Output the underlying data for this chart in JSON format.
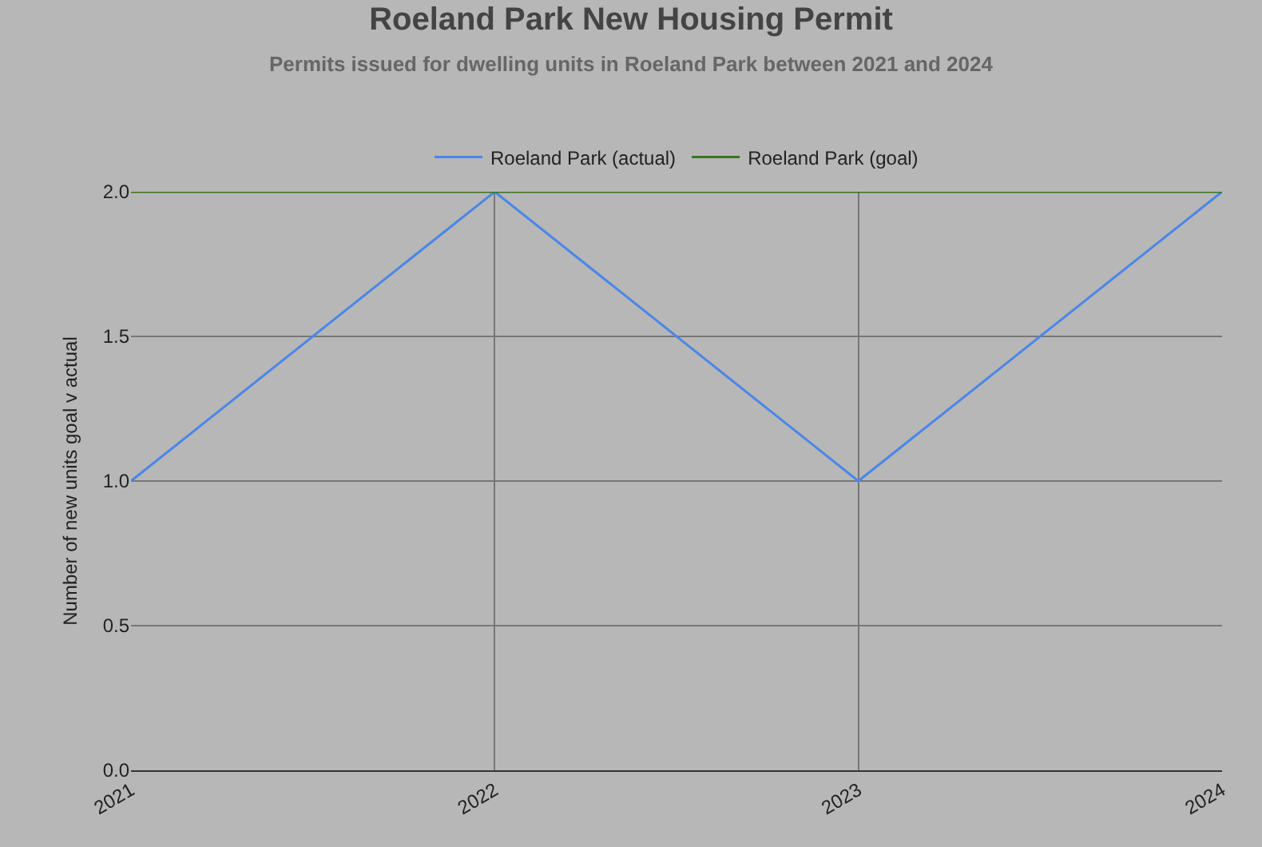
{
  "chart_data": {
    "type": "line",
    "title": "Roeland Park New Housing Permit",
    "subtitle": "Permits issued for dwelling units in Roeland Park between 2021 and 2024",
    "ylabel": "Number of new units goal v actual",
    "x": [
      2021,
      2022,
      2023,
      2024
    ],
    "series": [
      {
        "name": "Roeland Park (actual)",
        "color": "#4a86e8",
        "values": [
          1,
          2,
          1,
          2
        ]
      },
      {
        "name": "Roeland Park (goal)",
        "color": "#38761d",
        "values": [
          2,
          2,
          2,
          2
        ]
      }
    ],
    "xlim": [
      2021,
      2024
    ],
    "xticks": [
      2021,
      2022,
      2023,
      2024
    ],
    "ylim": [
      0,
      2
    ],
    "yticks": [
      {
        "value": 0,
        "label": "0.0"
      },
      {
        "value": 0.5,
        "label": "0.5"
      },
      {
        "value": 1,
        "label": "1.0"
      },
      {
        "value": 1.5,
        "label": "1.5"
      },
      {
        "value": 2,
        "label": "2.0"
      }
    ],
    "grid": true,
    "legend": "top"
  }
}
